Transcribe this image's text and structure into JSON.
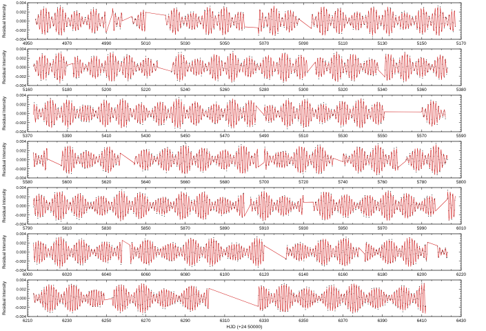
{
  "chart_data": [
    {
      "type": "scatter",
      "panel": 1,
      "ylabel": "Residual Intensity",
      "xlim": [
        4950,
        5170
      ],
      "ylim": [
        -0.004,
        0.004
      ],
      "xticks": [
        4950,
        4970,
        4990,
        5010,
        5030,
        5050,
        5070,
        5090,
        5110,
        5130,
        5150,
        5170
      ],
      "yticks": [
        "0.004",
        "0.002",
        "0.000",
        "-0.002",
        "-0.004"
      ],
      "segments": [
        [
          4954,
          4990
        ],
        [
          4993,
          4998
        ],
        [
          5003,
          5010
        ],
        [
          5020,
          5060
        ],
        [
          5067,
          5088
        ],
        [
          5094,
          5167
        ]
      ],
      "gaps_bridged": true
    },
    {
      "type": "scatter",
      "panel": 2,
      "ylabel": "Residual Intensity",
      "xlim": [
        5160,
        5380
      ],
      "ylim": [
        -0.004,
        0.004
      ],
      "xticks": [
        5160,
        5180,
        5200,
        5220,
        5240,
        5260,
        5280,
        5300,
        5320,
        5340,
        5360,
        5380
      ],
      "yticks": [
        "0.004",
        "0.002",
        "0.000",
        "-0.002",
        "-0.004"
      ],
      "segments": [
        [
          5163,
          5180
        ],
        [
          5183,
          5226
        ],
        [
          5233,
          5302
        ],
        [
          5306,
          5338
        ],
        [
          5341,
          5373
        ]
      ],
      "gaps_bridged": true
    },
    {
      "type": "scatter",
      "panel": 3,
      "ylabel": "Residual Intensity",
      "xlim": [
        5370,
        5590
      ],
      "ylim": [
        -0.004,
        0.004
      ],
      "xticks": [
        5370,
        5390,
        5410,
        5430,
        5450,
        5470,
        5490,
        5510,
        5530,
        5550,
        5570,
        5590
      ],
      "yticks": [
        "0.004",
        "0.002",
        "0.000",
        "-0.002",
        "-0.004"
      ],
      "segments": [
        [
          5373,
          5486
        ],
        [
          5490,
          5551
        ],
        [
          5570,
          5582
        ]
      ],
      "gaps_bridged": true
    },
    {
      "type": "scatter",
      "panel": 4,
      "ylabel": "Residual Intensity",
      "xlim": [
        5580,
        5800
      ],
      "ylim": [
        -0.004,
        0.004
      ],
      "xticks": [
        5580,
        5600,
        5620,
        5640,
        5660,
        5680,
        5700,
        5720,
        5740,
        5760,
        5780,
        5800
      ],
      "yticks": [
        "0.004",
        "0.002",
        "0.000",
        "-0.002",
        "-0.004"
      ],
      "segments": [
        [
          5583,
          5590
        ],
        [
          5597,
          5627
        ],
        [
          5634,
          5697
        ],
        [
          5700,
          5735
        ],
        [
          5740,
          5768
        ],
        [
          5772,
          5793
        ]
      ],
      "gaps_bridged": true
    },
    {
      "type": "scatter",
      "panel": 5,
      "ylabel": "Residual Intensity",
      "xlim": [
        5790,
        6010
      ],
      "ylim": [
        -0.004,
        0.004
      ],
      "xticks": [
        5790,
        5810,
        5830,
        5850,
        5870,
        5890,
        5910,
        5930,
        5950,
        5970,
        5990,
        6010
      ],
      "yticks": [
        "0.004",
        "0.002",
        "0.000",
        "-0.002",
        "-0.004"
      ],
      "segments": [
        [
          5793,
          5900
        ],
        [
          5903,
          5930
        ],
        [
          5935,
          5997
        ],
        [
          6003,
          6007
        ]
      ],
      "gaps_bridged": true
    },
    {
      "type": "scatter",
      "panel": 6,
      "ylabel": "Residual Intensity",
      "xlim": [
        6000,
        6220
      ],
      "ylim": [
        -0.004,
        0.004
      ],
      "xticks": [
        6000,
        6020,
        6040,
        6060,
        6080,
        6100,
        6120,
        6140,
        6160,
        6180,
        6200,
        6220
      ],
      "yticks": [
        "0.004",
        "0.002",
        "0.000",
        "-0.002",
        "-0.004"
      ],
      "segments": [
        [
          6003,
          6048
        ],
        [
          6052,
          6120
        ],
        [
          6131,
          6168
        ],
        [
          6171,
          6203
        ],
        [
          6208,
          6213
        ]
      ],
      "gaps_bridged": true
    },
    {
      "type": "scatter",
      "panel": 7,
      "ylabel": "Residual Intensity",
      "xlim": [
        6210,
        6430
      ],
      "ylim": [
        -0.004,
        0.004
      ],
      "xticks": [
        6210,
        6230,
        6250,
        6270,
        6290,
        6310,
        6330,
        6350,
        6370,
        6390,
        6410,
        6430
      ],
      "yticks": [
        "0.004",
        "0.002",
        "0.000",
        "-0.002",
        "-0.004"
      ],
      "segments": [
        [
          6213,
          6249
        ],
        [
          6253,
          6302
        ],
        [
          6327,
          6412
        ]
      ],
      "gaps_bridged": true,
      "xlabel": "HJD (+24 50000)"
    }
  ],
  "colors": {
    "data_points": "#000000",
    "model_fit": "#d11a1a",
    "axes": "#000000",
    "background": "#ffffff"
  }
}
